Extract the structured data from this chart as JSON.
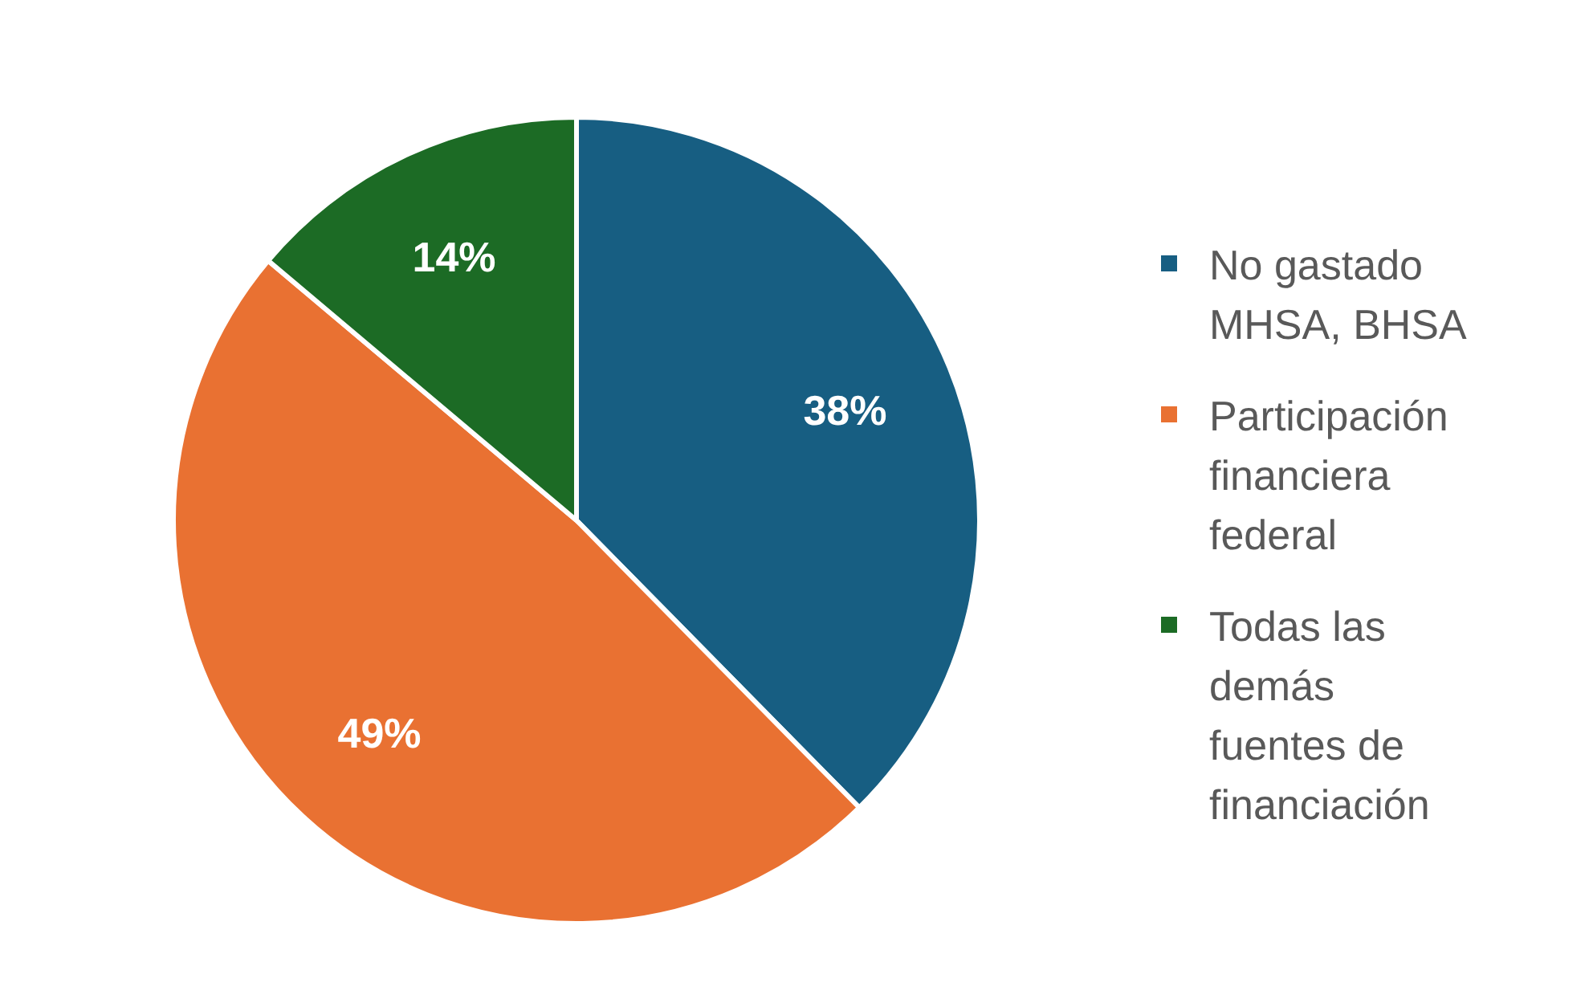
{
  "chart_data": {
    "type": "pie",
    "categories": [
      "No gastado MHSA, BHSA",
      "Participación financiera federal",
      "Todas las demás fuentes de financiación"
    ],
    "values": [
      38,
      49,
      14
    ],
    "colors": [
      "#175e82",
      "#e97132",
      "#1c6b25"
    ],
    "value_labels": [
      "38%",
      "49%",
      "14%"
    ],
    "legend": "right"
  }
}
